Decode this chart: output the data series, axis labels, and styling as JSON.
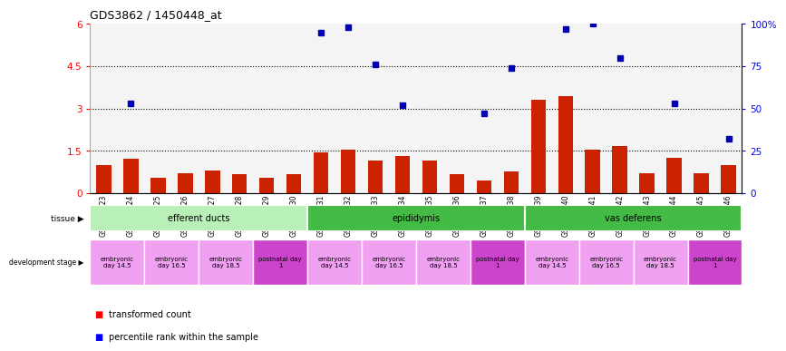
{
  "title": "GDS3862 / 1450448_at",
  "samples": [
    "GSM560923",
    "GSM560924",
    "GSM560925",
    "GSM560926",
    "GSM560927",
    "GSM560928",
    "GSM560929",
    "GSM560930",
    "GSM560931",
    "GSM560932",
    "GSM560933",
    "GSM560934",
    "GSM560935",
    "GSM560936",
    "GSM560937",
    "GSM560938",
    "GSM560939",
    "GSM560940",
    "GSM560941",
    "GSM560942",
    "GSM560943",
    "GSM560944",
    "GSM560945",
    "GSM560946"
  ],
  "bar_values": [
    1.0,
    1.2,
    0.55,
    0.7,
    0.8,
    0.65,
    0.55,
    0.65,
    1.45,
    1.55,
    1.15,
    1.3,
    1.15,
    0.65,
    0.45,
    0.75,
    3.3,
    3.45,
    1.55,
    1.65,
    0.7,
    1.25,
    0.7,
    1.0
  ],
  "dot_x": [
    1,
    8,
    9,
    10,
    11,
    14,
    15,
    17,
    18,
    19,
    21,
    23
  ],
  "dot_pct": [
    53,
    95,
    98,
    76,
    52,
    47,
    74,
    97,
    100,
    80,
    53,
    32
  ],
  "ylim_left": [
    0,
    6
  ],
  "ylim_right": [
    0,
    100
  ],
  "yticks_left": [
    0,
    1.5,
    3.0,
    4.5,
    6.0
  ],
  "ytick_labels_left": [
    "0",
    "1.5",
    "3",
    "4.5",
    "6"
  ],
  "yticks_right": [
    0,
    25,
    50,
    75,
    100
  ],
  "ytick_labels_right": [
    "0",
    "25",
    "50",
    "75",
    "100%"
  ],
  "bar_color": "#cc2200",
  "dot_color": "#0000bb",
  "hline_vals": [
    1.5,
    3.0,
    4.5
  ],
  "tissue_defs": [
    {
      "label": "efferent ducts",
      "start": 0,
      "end": 8,
      "color": "#b8f0b8"
    },
    {
      "label": "epididymis",
      "start": 8,
      "end": 16,
      "color": "#44bb44"
    },
    {
      "label": "vas deferens",
      "start": 16,
      "end": 24,
      "color": "#44bb44"
    }
  ],
  "dev_defs": [
    {
      "label": "embryonic\nday 14.5",
      "start": 0,
      "end": 2,
      "color": "#f0a0f0"
    },
    {
      "label": "embryonic\nday 16.5",
      "start": 2,
      "end": 4,
      "color": "#f0a0f0"
    },
    {
      "label": "embryonic\nday 18.5",
      "start": 4,
      "end": 6,
      "color": "#f0a0f0"
    },
    {
      "label": "postnatal day\n1",
      "start": 6,
      "end": 8,
      "color": "#cc44cc"
    },
    {
      "label": "embryonic\nday 14.5",
      "start": 8,
      "end": 10,
      "color": "#f0a0f0"
    },
    {
      "label": "embryonic\nday 16.5",
      "start": 10,
      "end": 12,
      "color": "#f0a0f0"
    },
    {
      "label": "embryonic\nday 18.5",
      "start": 12,
      "end": 14,
      "color": "#f0a0f0"
    },
    {
      "label": "postnatal day\n1",
      "start": 14,
      "end": 16,
      "color": "#cc44cc"
    },
    {
      "label": "embryonic\nday 14.5",
      "start": 16,
      "end": 18,
      "color": "#f0a0f0"
    },
    {
      "label": "embryonic\nday 16.5",
      "start": 18,
      "end": 20,
      "color": "#f0a0f0"
    },
    {
      "label": "embryonic\nday 18.5",
      "start": 20,
      "end": 22,
      "color": "#f0a0f0"
    },
    {
      "label": "postnatal day\n1",
      "start": 22,
      "end": 24,
      "color": "#cc44cc"
    }
  ]
}
